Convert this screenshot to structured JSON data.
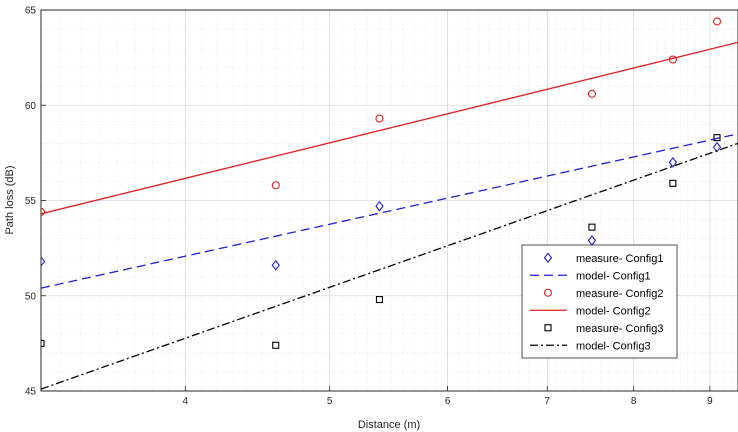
{
  "chart_data": {
    "type": "line",
    "xlabel": "Distance (m)",
    "ylabel": "Path loss (dB)",
    "x_scale": "log",
    "xlim": [
      3.2,
      9.4
    ],
    "ylim": [
      45,
      65
    ],
    "x_ticks": [
      4,
      5,
      6,
      7,
      8,
      9
    ],
    "y_ticks": [
      45,
      50,
      55,
      60,
      65
    ],
    "grid": true,
    "minor_grid": true,
    "legend_position": "bottom-right",
    "series": [
      {
        "name": "measure- Config1",
        "kind": "scatter",
        "marker": "diamond",
        "color": "#1f1fd6",
        "points": [
          [
            3.2,
            51.8
          ],
          [
            4.6,
            51.6
          ],
          [
            5.4,
            54.7
          ],
          [
            7.5,
            52.9
          ],
          [
            8.5,
            57.0
          ],
          [
            9.1,
            57.8
          ]
        ]
      },
      {
        "name": "model- Config1",
        "kind": "line",
        "style": "dashed",
        "color": "#1f1fd6",
        "points": [
          [
            3.2,
            50.4
          ],
          [
            9.4,
            58.5
          ]
        ]
      },
      {
        "name": "measure- Config2",
        "kind": "scatter",
        "marker": "circle",
        "color": "#e02020",
        "points": [
          [
            3.2,
            54.4
          ],
          [
            4.6,
            55.8
          ],
          [
            5.4,
            59.3
          ],
          [
            7.5,
            60.6
          ],
          [
            8.5,
            62.4
          ],
          [
            9.1,
            64.4
          ]
        ]
      },
      {
        "name": "model- Config2",
        "kind": "line",
        "style": "solid",
        "color": "#e02020",
        "points": [
          [
            3.2,
            54.3
          ],
          [
            9.4,
            63.3
          ]
        ]
      },
      {
        "name": "measure- Config3",
        "kind": "scatter",
        "marker": "square",
        "color": "#000000",
        "points": [
          [
            3.2,
            47.5
          ],
          [
            4.6,
            47.4
          ],
          [
            5.4,
            49.8
          ],
          [
            7.5,
            53.6
          ],
          [
            8.5,
            55.9
          ],
          [
            9.1,
            58.3
          ]
        ]
      },
      {
        "name": "model- Config3",
        "kind": "line",
        "style": "dashdot",
        "color": "#000000",
        "points": [
          [
            3.2,
            45.1
          ],
          [
            9.4,
            58.0
          ]
        ]
      }
    ]
  }
}
